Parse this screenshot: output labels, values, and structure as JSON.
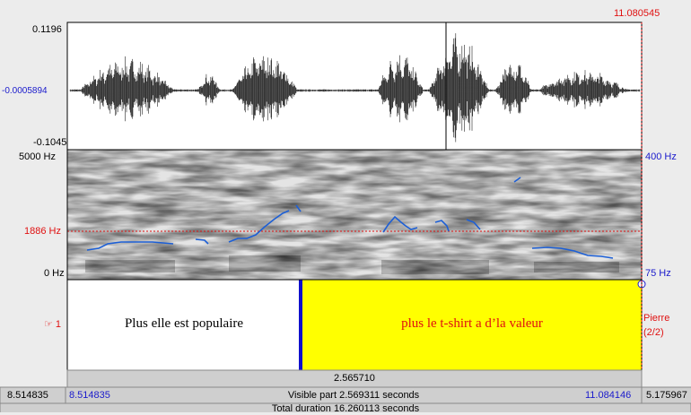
{
  "waveform": {
    "max_label": "0.1196",
    "mid_label": "-0.0005894",
    "min_label": "-0.1045",
    "cursor_time": "11.080545"
  },
  "spectrogram": {
    "top_label": "5000 Hz",
    "cursor_label": "1886 Hz",
    "bottom_label": "0 Hz",
    "pitch_top": "400 Hz",
    "pitch_bottom": "75 Hz"
  },
  "tier": {
    "marker": "☞ 1",
    "name": "Pierre",
    "count": "(2/2)",
    "intervals": [
      "Plus elle est populaire",
      "plus le t-shirt a d’la valeur"
    ]
  },
  "selection": {
    "duration": "2.565710"
  },
  "window": {
    "left_outside": "8.514835",
    "start": "8.514835",
    "visible": "Visible part 2.569311 seconds",
    "end": "11.084146",
    "right_outside": "5.175967",
    "total": "Total duration 16.260113 seconds"
  }
}
